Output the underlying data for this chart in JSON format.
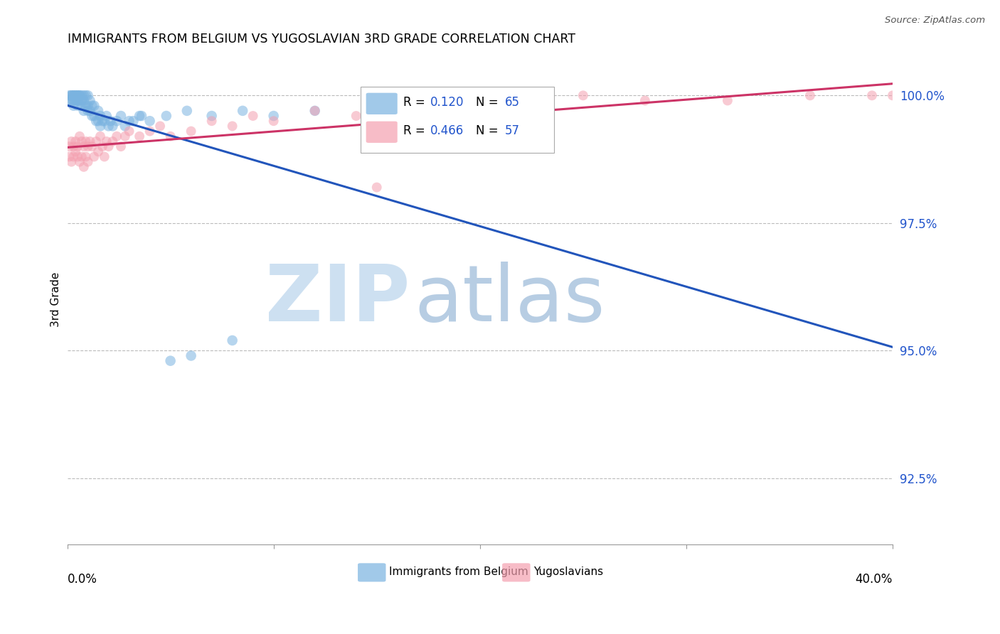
{
  "title": "IMMIGRANTS FROM BELGIUM VS YUGOSLAVIAN 3RD GRADE CORRELATION CHART",
  "source": "Source: ZipAtlas.com",
  "ylabel": "3rd Grade",
  "yticks": [
    92.5,
    95.0,
    97.5,
    100.0
  ],
  "ytick_labels": [
    "92.5%",
    "95.0%",
    "97.5%",
    "100.0%"
  ],
  "xlim": [
    0.0,
    0.4
  ],
  "ylim": [
    91.2,
    100.8
  ],
  "belgium_color": "#7ab3e0",
  "yugoslavian_color": "#f4a0b0",
  "belgium_line_color": "#2255bb",
  "yugoslavian_line_color": "#cc3366",
  "watermark_zip_color": "#c8ddf0",
  "watermark_atlas_color": "#b0c8e0",
  "belgium_x": [
    0.001,
    0.001,
    0.002,
    0.002,
    0.002,
    0.003,
    0.003,
    0.003,
    0.003,
    0.004,
    0.004,
    0.004,
    0.005,
    0.005,
    0.005,
    0.005,
    0.006,
    0.006,
    0.006,
    0.007,
    0.007,
    0.007,
    0.008,
    0.008,
    0.008,
    0.009,
    0.009,
    0.01,
    0.01,
    0.01,
    0.011,
    0.011,
    0.012,
    0.012,
    0.013,
    0.013,
    0.014,
    0.015,
    0.015,
    0.016,
    0.016,
    0.017,
    0.018,
    0.019,
    0.02,
    0.021,
    0.022,
    0.024,
    0.026,
    0.028,
    0.03,
    0.035,
    0.04,
    0.048,
    0.058,
    0.07,
    0.085,
    0.1,
    0.12,
    0.15,
    0.05,
    0.06,
    0.08,
    0.032,
    0.036
  ],
  "belgium_y": [
    100.0,
    99.9,
    100.0,
    99.9,
    100.0,
    100.0,
    99.8,
    99.9,
    100.0,
    100.0,
    99.9,
    100.0,
    100.0,
    99.8,
    99.9,
    100.0,
    99.9,
    100.0,
    100.0,
    99.8,
    99.9,
    100.0,
    99.7,
    99.9,
    100.0,
    99.8,
    100.0,
    99.7,
    99.8,
    100.0,
    99.7,
    99.9,
    99.6,
    99.8,
    99.6,
    99.8,
    99.5,
    99.5,
    99.7,
    99.4,
    99.6,
    99.5,
    99.5,
    99.6,
    99.4,
    99.5,
    99.4,
    99.5,
    99.6,
    99.4,
    99.5,
    99.6,
    99.5,
    99.6,
    99.7,
    99.6,
    99.7,
    99.6,
    99.7,
    100.0,
    94.8,
    94.9,
    95.2,
    99.5,
    99.6
  ],
  "yugoslav_x": [
    0.001,
    0.001,
    0.002,
    0.002,
    0.003,
    0.003,
    0.004,
    0.004,
    0.005,
    0.005,
    0.006,
    0.006,
    0.007,
    0.007,
    0.008,
    0.008,
    0.009,
    0.009,
    0.01,
    0.01,
    0.011,
    0.012,
    0.013,
    0.014,
    0.015,
    0.016,
    0.017,
    0.018,
    0.019,
    0.02,
    0.022,
    0.024,
    0.026,
    0.028,
    0.03,
    0.035,
    0.04,
    0.045,
    0.05,
    0.06,
    0.07,
    0.08,
    0.09,
    0.1,
    0.12,
    0.14,
    0.16,
    0.18,
    0.2,
    0.22,
    0.25,
    0.28,
    0.32,
    0.36,
    0.39,
    0.4,
    0.15
  ],
  "yugoslav_y": [
    99.0,
    98.8,
    99.1,
    98.7,
    99.0,
    98.8,
    99.1,
    98.9,
    99.0,
    98.8,
    99.2,
    98.7,
    99.1,
    98.8,
    99.0,
    98.6,
    99.1,
    98.8,
    99.0,
    98.7,
    99.1,
    99.0,
    98.8,
    99.1,
    98.9,
    99.2,
    99.0,
    98.8,
    99.1,
    99.0,
    99.1,
    99.2,
    99.0,
    99.2,
    99.3,
    99.2,
    99.3,
    99.4,
    99.2,
    99.3,
    99.5,
    99.4,
    99.6,
    99.5,
    99.7,
    99.6,
    99.8,
    99.7,
    99.9,
    99.8,
    100.0,
    99.9,
    99.9,
    100.0,
    100.0,
    100.0,
    98.2
  ],
  "legend_R1": "0.120",
  "legend_N1": "65",
  "legend_R2": "0.466",
  "legend_N2": "57",
  "legend1_label": "Immigrants from Belgium",
  "legend2_label": "Yugoslavians"
}
